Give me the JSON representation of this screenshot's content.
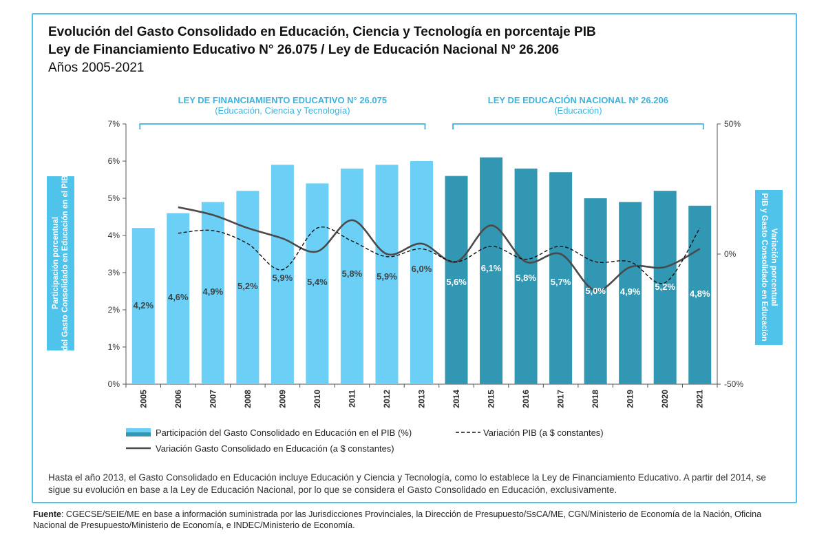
{
  "title_line1": "Evolución del Gasto Consolidado en Educación, Ciencia y Tecnología en porcentaje PIB",
  "title_line2": "Ley de Financiamiento Educativo N° 26.075 / Ley de Educación Nacional Nº 26.206",
  "title_line3": "Años 2005-2021",
  "colors": {
    "light_bar": "#6ccff6",
    "dark_bar": "#3197b3",
    "frame": "#4fc3ea",
    "line": "#4a4a4a",
    "bracket": "#3cb4e0"
  },
  "brackets": [
    {
      "label": "LEY DE FINANCIAMIENTO EDUCATIVO N° 26.075",
      "sublabel": "(Educación, Ciencia y Tecnología)",
      "from": "2005",
      "to": "2013"
    },
    {
      "label": "LEY DE EDUCACIÓN NACIONAL Nº 26.206",
      "sublabel": "(Educación)",
      "from": "2014",
      "to": "2021"
    }
  ],
  "chart_data": {
    "type": "bar",
    "categories": [
      "2005",
      "2006",
      "2007",
      "2008",
      "2009",
      "2010",
      "2011",
      "2012",
      "2013",
      "2014",
      "2015",
      "2016",
      "2017",
      "2018",
      "2019",
      "2020",
      "2021"
    ],
    "series": [
      {
        "name": "Participación del Gasto Consolidado en Educación en el PIB (%)",
        "type": "bar",
        "axis": "left",
        "values": [
          4.2,
          4.6,
          4.9,
          5.2,
          5.9,
          5.4,
          5.8,
          5.9,
          6.0,
          5.6,
          6.1,
          5.8,
          5.7,
          5.0,
          4.9,
          5.2,
          4.8
        ],
        "labels": [
          "4,2%",
          "4,6%",
          "4,9%",
          "5,2%",
          "5,9%",
          "5,4%",
          "5,8%",
          "5,9%",
          "6,0%",
          "5,6%",
          "6,1%",
          "5,8%",
          "5,7%",
          "5,0%",
          "4,9%",
          "5,2%",
          "4,8%"
        ]
      },
      {
        "name": "Variación PIB (a $ constantes)",
        "type": "line",
        "style": "dashed",
        "axis": "right",
        "values": [
          null,
          8,
          9,
          4,
          -6,
          10,
          5,
          -1,
          2,
          -3,
          3,
          -2,
          3,
          -3,
          -3,
          -11,
          10
        ]
      },
      {
        "name": "Variación Gasto Consolidado en Educación (a $ constantes)",
        "type": "line",
        "style": "solid",
        "axis": "right",
        "values": [
          null,
          18,
          15,
          10,
          6,
          1,
          13,
          0,
          4,
          -3,
          11,
          -3,
          0,
          -14,
          -5,
          -5,
          2
        ]
      }
    ],
    "ylim_left": [
      0,
      7
    ],
    "yticks_left": [
      "0%",
      "1%",
      "2%",
      "3%",
      "4%",
      "5%",
      "6%",
      "7%"
    ],
    "ylim_right": [
      -50,
      50
    ],
    "yticks_right": [
      "-50%",
      "0%",
      "50%"
    ],
    "ylabel_left": "Participación porcentual del Gasto Consolidado en Educación en el PIB",
    "ylabel_right": "Variación porcentual PIB y Gasto Consolidado en Educación",
    "legend_placement": "bottom",
    "grid": false
  },
  "footnote": "Hasta el año 2013, el Gasto Consolidado en Educación incluye Educación y Ciencia y Tecnología, como lo establece la Ley de Financiamiento Educativo. A partir del 2014, se sigue su evolución en base a la Ley de Educación Nacional, por lo que se considera el Gasto Consolidado en Educación, exclusivamente.",
  "source_label": "Fuente",
  "source_text": ": CGECSE/SEIE/ME en base a información suministrada por las Jurisdicciones Provinciales, la Dirección de Presupuesto/SsCA/ME, CGN/Ministerio de Economía de la Nación, Oficina Nacional de Presupuesto/Ministerio de Economía, e INDEC/Ministerio de Economía."
}
